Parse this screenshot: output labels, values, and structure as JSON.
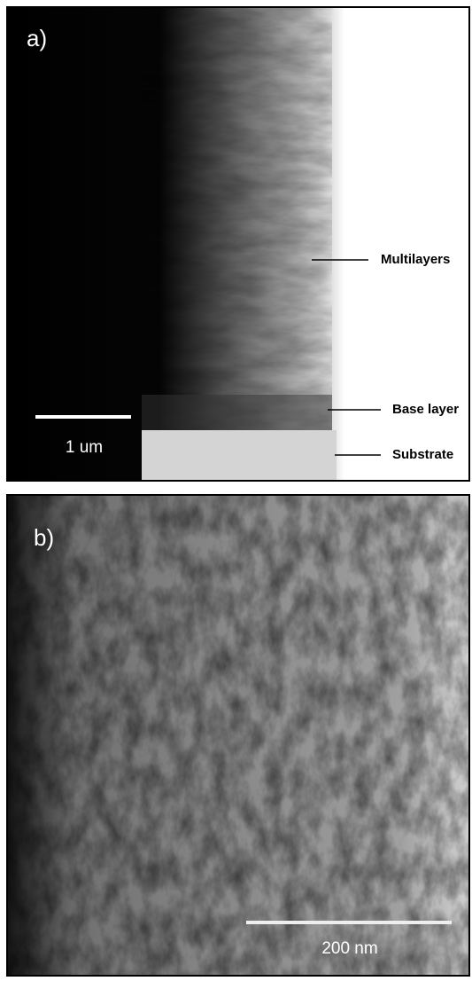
{
  "panels": [
    {
      "label": "a)",
      "scale_bar": "1 um",
      "annotations": [
        "Multilayers",
        "Base layer",
        "Substrate"
      ]
    },
    {
      "label": "b)",
      "scale_bar": "200 nm"
    }
  ]
}
